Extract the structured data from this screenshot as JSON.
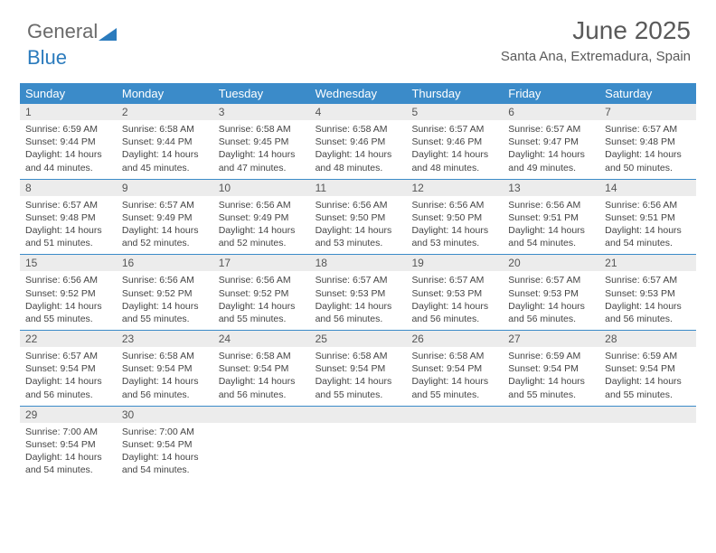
{
  "brand": {
    "part1": "General",
    "part2": "Blue"
  },
  "title": "June 2025",
  "location": "Santa Ana, Extremadura, Spain",
  "colors": {
    "header_bg": "#3b8bc9",
    "header_text": "#ffffff",
    "daynum_bg": "#ececec",
    "body_text": "#444444",
    "title_text": "#5a5a5a"
  },
  "day_labels": [
    "Sunday",
    "Monday",
    "Tuesday",
    "Wednesday",
    "Thursday",
    "Friday",
    "Saturday"
  ],
  "weeks": [
    [
      {
        "n": "1",
        "sr": "Sunrise: 6:59 AM",
        "ss": "Sunset: 9:44 PM",
        "dl": "Daylight: 14 hours and 44 minutes."
      },
      {
        "n": "2",
        "sr": "Sunrise: 6:58 AM",
        "ss": "Sunset: 9:44 PM",
        "dl": "Daylight: 14 hours and 45 minutes."
      },
      {
        "n": "3",
        "sr": "Sunrise: 6:58 AM",
        "ss": "Sunset: 9:45 PM",
        "dl": "Daylight: 14 hours and 47 minutes."
      },
      {
        "n": "4",
        "sr": "Sunrise: 6:58 AM",
        "ss": "Sunset: 9:46 PM",
        "dl": "Daylight: 14 hours and 48 minutes."
      },
      {
        "n": "5",
        "sr": "Sunrise: 6:57 AM",
        "ss": "Sunset: 9:46 PM",
        "dl": "Daylight: 14 hours and 48 minutes."
      },
      {
        "n": "6",
        "sr": "Sunrise: 6:57 AM",
        "ss": "Sunset: 9:47 PM",
        "dl": "Daylight: 14 hours and 49 minutes."
      },
      {
        "n": "7",
        "sr": "Sunrise: 6:57 AM",
        "ss": "Sunset: 9:48 PM",
        "dl": "Daylight: 14 hours and 50 minutes."
      }
    ],
    [
      {
        "n": "8",
        "sr": "Sunrise: 6:57 AM",
        "ss": "Sunset: 9:48 PM",
        "dl": "Daylight: 14 hours and 51 minutes."
      },
      {
        "n": "9",
        "sr": "Sunrise: 6:57 AM",
        "ss": "Sunset: 9:49 PM",
        "dl": "Daylight: 14 hours and 52 minutes."
      },
      {
        "n": "10",
        "sr": "Sunrise: 6:56 AM",
        "ss": "Sunset: 9:49 PM",
        "dl": "Daylight: 14 hours and 52 minutes."
      },
      {
        "n": "11",
        "sr": "Sunrise: 6:56 AM",
        "ss": "Sunset: 9:50 PM",
        "dl": "Daylight: 14 hours and 53 minutes."
      },
      {
        "n": "12",
        "sr": "Sunrise: 6:56 AM",
        "ss": "Sunset: 9:50 PM",
        "dl": "Daylight: 14 hours and 53 minutes."
      },
      {
        "n": "13",
        "sr": "Sunrise: 6:56 AM",
        "ss": "Sunset: 9:51 PM",
        "dl": "Daylight: 14 hours and 54 minutes."
      },
      {
        "n": "14",
        "sr": "Sunrise: 6:56 AM",
        "ss": "Sunset: 9:51 PM",
        "dl": "Daylight: 14 hours and 54 minutes."
      }
    ],
    [
      {
        "n": "15",
        "sr": "Sunrise: 6:56 AM",
        "ss": "Sunset: 9:52 PM",
        "dl": "Daylight: 14 hours and 55 minutes."
      },
      {
        "n": "16",
        "sr": "Sunrise: 6:56 AM",
        "ss": "Sunset: 9:52 PM",
        "dl": "Daylight: 14 hours and 55 minutes."
      },
      {
        "n": "17",
        "sr": "Sunrise: 6:56 AM",
        "ss": "Sunset: 9:52 PM",
        "dl": "Daylight: 14 hours and 55 minutes."
      },
      {
        "n": "18",
        "sr": "Sunrise: 6:57 AM",
        "ss": "Sunset: 9:53 PM",
        "dl": "Daylight: 14 hours and 56 minutes."
      },
      {
        "n": "19",
        "sr": "Sunrise: 6:57 AM",
        "ss": "Sunset: 9:53 PM",
        "dl": "Daylight: 14 hours and 56 minutes."
      },
      {
        "n": "20",
        "sr": "Sunrise: 6:57 AM",
        "ss": "Sunset: 9:53 PM",
        "dl": "Daylight: 14 hours and 56 minutes."
      },
      {
        "n": "21",
        "sr": "Sunrise: 6:57 AM",
        "ss": "Sunset: 9:53 PM",
        "dl": "Daylight: 14 hours and 56 minutes."
      }
    ],
    [
      {
        "n": "22",
        "sr": "Sunrise: 6:57 AM",
        "ss": "Sunset: 9:54 PM",
        "dl": "Daylight: 14 hours and 56 minutes."
      },
      {
        "n": "23",
        "sr": "Sunrise: 6:58 AM",
        "ss": "Sunset: 9:54 PM",
        "dl": "Daylight: 14 hours and 56 minutes."
      },
      {
        "n": "24",
        "sr": "Sunrise: 6:58 AM",
        "ss": "Sunset: 9:54 PM",
        "dl": "Daylight: 14 hours and 56 minutes."
      },
      {
        "n": "25",
        "sr": "Sunrise: 6:58 AM",
        "ss": "Sunset: 9:54 PM",
        "dl": "Daylight: 14 hours and 55 minutes."
      },
      {
        "n": "26",
        "sr": "Sunrise: 6:58 AM",
        "ss": "Sunset: 9:54 PM",
        "dl": "Daylight: 14 hours and 55 minutes."
      },
      {
        "n": "27",
        "sr": "Sunrise: 6:59 AM",
        "ss": "Sunset: 9:54 PM",
        "dl": "Daylight: 14 hours and 55 minutes."
      },
      {
        "n": "28",
        "sr": "Sunrise: 6:59 AM",
        "ss": "Sunset: 9:54 PM",
        "dl": "Daylight: 14 hours and 55 minutes."
      }
    ],
    [
      {
        "n": "29",
        "sr": "Sunrise: 7:00 AM",
        "ss": "Sunset: 9:54 PM",
        "dl": "Daylight: 14 hours and 54 minutes."
      },
      {
        "n": "30",
        "sr": "Sunrise: 7:00 AM",
        "ss": "Sunset: 9:54 PM",
        "dl": "Daylight: 14 hours and 54 minutes."
      },
      {
        "n": "",
        "sr": "",
        "ss": "",
        "dl": ""
      },
      {
        "n": "",
        "sr": "",
        "ss": "",
        "dl": ""
      },
      {
        "n": "",
        "sr": "",
        "ss": "",
        "dl": ""
      },
      {
        "n": "",
        "sr": "",
        "ss": "",
        "dl": ""
      },
      {
        "n": "",
        "sr": "",
        "ss": "",
        "dl": ""
      }
    ]
  ]
}
